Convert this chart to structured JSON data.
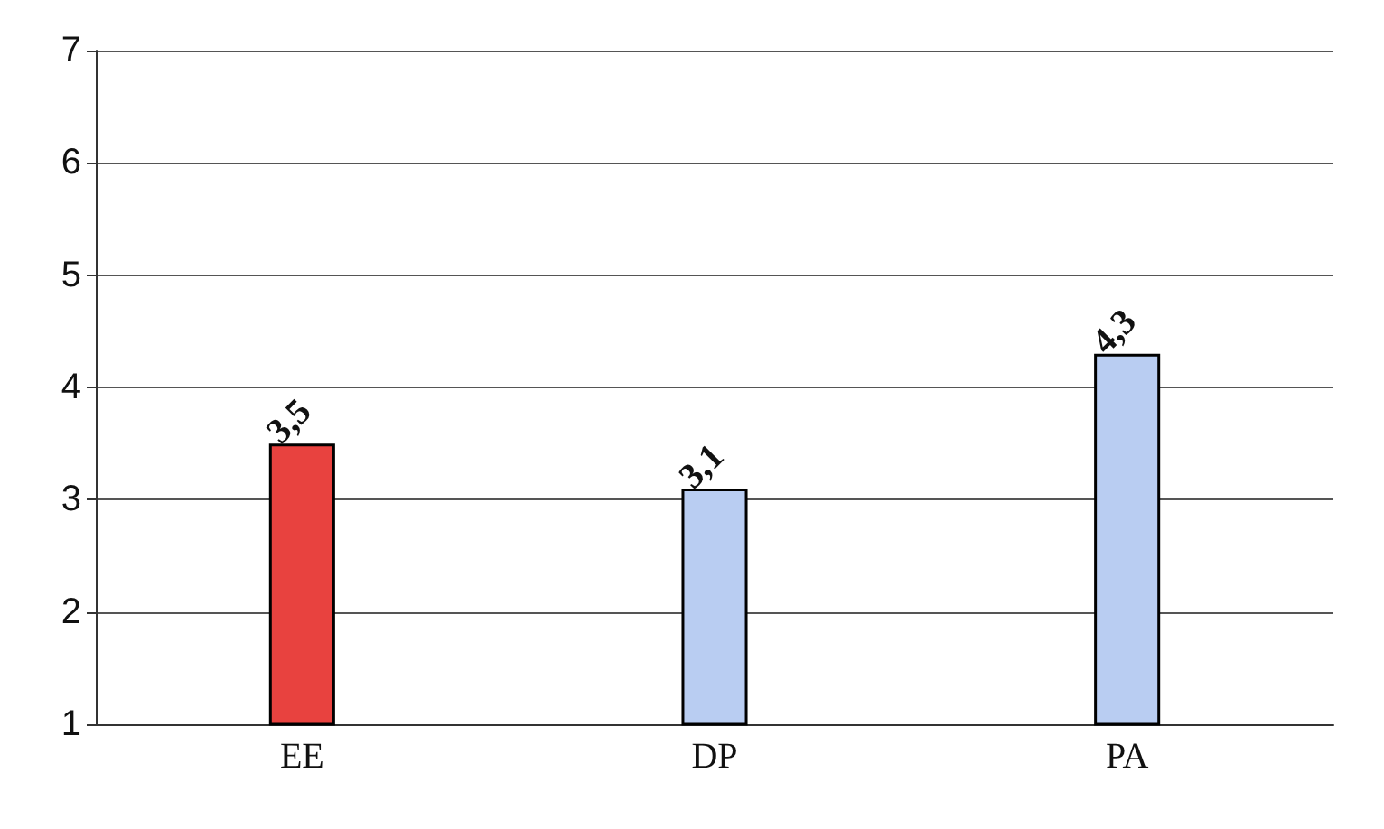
{
  "chart_data": {
    "type": "bar",
    "categories": [
      "EE",
      "DP",
      "PA"
    ],
    "values": [
      3.5,
      3.1,
      4.3
    ],
    "colors": [
      "#e8423f",
      "#b9cdf2",
      "#b9cdf2"
    ],
    "value_labels": [
      "3,5",
      "3,1",
      "4,3"
    ],
    "ylim": [
      1,
      7
    ],
    "yticks": [
      1,
      2,
      3,
      4,
      5,
      6,
      7
    ],
    "grid": "y"
  }
}
